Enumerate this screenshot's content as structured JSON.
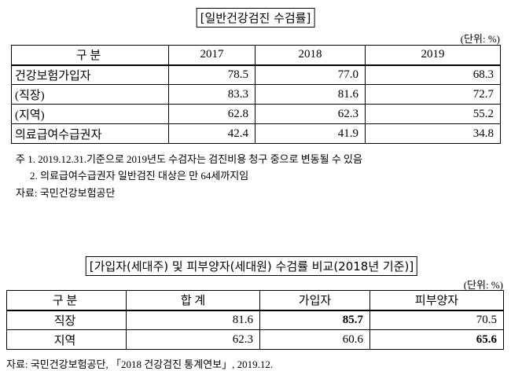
{
  "table1": {
    "title": "[일반건강검진 수검률]",
    "unit": "(단위: %)",
    "header": [
      "구 분",
      "2017",
      "2018",
      "2019"
    ],
    "rows": [
      [
        "건강보험가입자",
        "78.5",
        "77.0",
        "68.3"
      ],
      [
        "(직장)",
        "83.3",
        "81.6",
        "72.7"
      ],
      [
        "(지역)",
        "62.8",
        "62.3",
        "55.2"
      ],
      [
        "의료급여수급권자",
        "42.4",
        "41.9",
        "34.8"
      ]
    ]
  },
  "notes": [
    "주 1.  2019.12.31.기준으로 2019년도 수검자는 검진비용 청구 중으로 변동될 수 있음",
    "2. 의료급여수급권자 일반검진 대상은 만 64세까지임"
  ],
  "source1": "자료: 국민건강보험공단",
  "table2": {
    "title": "[가입자(세대주) 및 피부양자(세대원) 수검률 비교(2018년 기준)]",
    "unit": "(단위: %)",
    "header": [
      "구 분",
      "합 계",
      "가입자",
      "피부양자"
    ],
    "rows": [
      [
        "직장",
        "81.6",
        "85.7",
        "70.5"
      ],
      [
        "지역",
        "62.3",
        "60.6",
        "65.6"
      ]
    ]
  },
  "source2": "자료: 국민건강보험공단, 「2018 건강검진 통계연보」, 2019.12."
}
